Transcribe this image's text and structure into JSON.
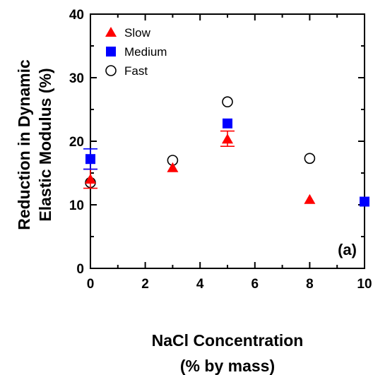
{
  "chart_data": {
    "type": "scatter",
    "xlabel_lines": [
      "NaCl Concentration",
      "(% by mass)"
    ],
    "ylabel_lines": [
      "Reduction in Dynamic",
      "Elastic Modulus (%)"
    ],
    "panel_label": "(a)",
    "xlim": [
      0,
      10
    ],
    "ylim": [
      0,
      40
    ],
    "x_ticks": [
      0,
      2,
      4,
      6,
      8,
      10
    ],
    "y_ticks": [
      0,
      10,
      20,
      30,
      40
    ],
    "grid": false,
    "legend_position": "top-left",
    "series": [
      {
        "name": "Slow",
        "marker": "triangle",
        "color": "#ff0000",
        "points": [
          {
            "x": 0,
            "y": 14.0,
            "err_lo": 12.6,
            "err_hi": 15.6
          },
          {
            "x": 3,
            "y": 15.8
          },
          {
            "x": 5,
            "y": 20.3,
            "err_lo": 19.2,
            "err_hi": 21.6
          },
          {
            "x": 8,
            "y": 10.8
          }
        ]
      },
      {
        "name": "Medium",
        "marker": "square",
        "color": "#0000ff",
        "points": [
          {
            "x": 0,
            "y": 17.2,
            "err_lo": 15.6,
            "err_hi": 18.8
          },
          {
            "x": 5,
            "y": 22.8
          },
          {
            "x": 10,
            "y": 10.5
          }
        ]
      },
      {
        "name": "Fast",
        "marker": "circle-open",
        "color": "#000000",
        "points": [
          {
            "x": 0,
            "y": 13.5
          },
          {
            "x": 3,
            "y": 17.0
          },
          {
            "x": 5,
            "y": 26.2
          },
          {
            "x": 8,
            "y": 17.3
          }
        ]
      }
    ]
  }
}
